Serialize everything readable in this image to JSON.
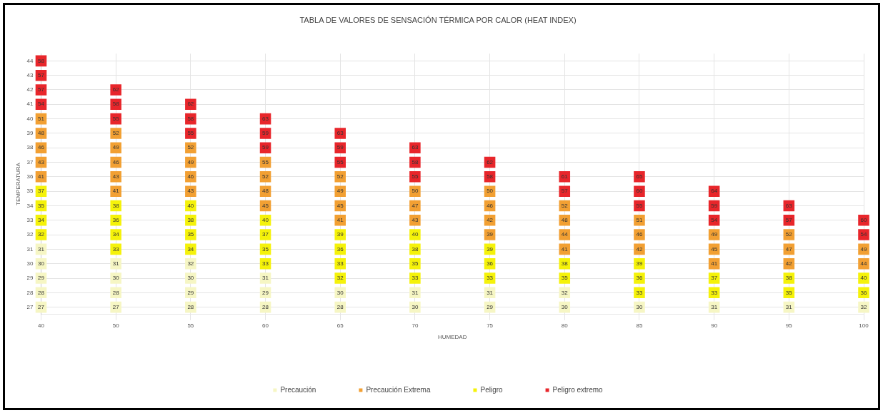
{
  "chart_data": {
    "type": "scatter",
    "title": "TABLA DE VALORES DE SENSACIÓN TÉRMICA POR CALOR (HEAT INDEX)",
    "xlabel": "HUMEDAD",
    "ylabel": "TEMPERATURA",
    "categories": [
      "40",
      "50",
      "55",
      "60",
      "65",
      "70",
      "75",
      "80",
      "85",
      "90",
      "95",
      "100"
    ],
    "series": [
      {
        "name": "Precaución",
        "color": "#f6f6c4",
        "x": [
          "40",
          "40",
          "40",
          "40",
          "40",
          "50",
          "50",
          "50",
          "50",
          "55",
          "55",
          "55",
          "55",
          "60",
          "60",
          "60",
          "65",
          "65",
          "70",
          "70",
          "75",
          "75",
          "80",
          "80",
          "85",
          "90",
          "95",
          "100"
        ],
        "values": [
          27,
          28,
          29,
          30,
          31,
          27,
          28,
          29,
          30,
          27,
          28,
          29,
          30,
          27,
          28,
          29,
          27,
          28,
          27,
          28,
          27,
          28,
          27,
          28,
          27,
          27,
          27,
          27
        ]
      },
      {
        "name": "Precaución Extrema",
        "color": "#f2a033",
        "x": [
          "40",
          "40",
          "40",
          "40",
          "40",
          "50",
          "50",
          "50",
          "50",
          "50",
          "55",
          "55",
          "55",
          "55",
          "60",
          "60",
          "60",
          "60",
          "65",
          "65",
          "65",
          "65",
          "70",
          "70",
          "70",
          "75",
          "75",
          "75",
          "75",
          "80",
          "80",
          "80",
          "80",
          "85",
          "85",
          "85",
          "90",
          "90",
          "90",
          "95",
          "95",
          "95",
          "100",
          "100"
        ],
        "values": [
          36,
          37,
          38,
          39,
          40,
          35,
          36,
          37,
          38,
          39,
          35,
          36,
          37,
          38,
          34,
          35,
          36,
          37,
          33,
          34,
          35,
          36,
          33,
          34,
          35,
          32,
          33,
          34,
          35,
          31,
          32,
          33,
          34,
          31,
          32,
          33,
          30,
          31,
          32,
          30,
          31,
          32,
          30,
          31
        ]
      },
      {
        "name": "Peligro",
        "color": "#f5f20a",
        "x": [
          "40",
          "40",
          "40",
          "40",
          "50",
          "50",
          "50",
          "50",
          "55",
          "55",
          "55",
          "55",
          "60",
          "60",
          "60",
          "60",
          "65",
          "65",
          "65",
          "65",
          "70",
          "70",
          "70",
          "70",
          "75",
          "75",
          "75",
          "80",
          "80",
          "85",
          "85",
          "85",
          "90",
          "90",
          "95",
          "95",
          "100",
          "100"
        ],
        "values": [
          32,
          33,
          34,
          35,
          31,
          32,
          33,
          34,
          31,
          32,
          33,
          34,
          30,
          31,
          32,
          33,
          29,
          30,
          31,
          32,
          29,
          30,
          31,
          32,
          29,
          30,
          31,
          29,
          30,
          28,
          29,
          30,
          28,
          29,
          28,
          29,
          28,
          29
        ]
      },
      {
        "name": "Peligro extremo",
        "color": "#e8262b",
        "x": [
          "40",
          "40",
          "40",
          "40",
          "50",
          "50",
          "50",
          "55",
          "55",
          "55",
          "60",
          "60",
          "60",
          "65",
          "65",
          "65",
          "70",
          "70",
          "70",
          "75",
          "75",
          "80",
          "80",
          "85",
          "85",
          "85",
          "90",
          "90",
          "90",
          "95",
          "95",
          "100",
          "100"
        ],
        "values": [
          41,
          42,
          43,
          44,
          40,
          41,
          42,
          39,
          40,
          41,
          38,
          39,
          40,
          37,
          38,
          39,
          36,
          37,
          38,
          36,
          37,
          35,
          36,
          34,
          35,
          36,
          33,
          34,
          35,
          33,
          34,
          32,
          33
        ]
      }
    ],
    "annotations": [
      {
        "text": "27",
        "x": "40",
        "y": 27
      },
      {
        "text": "28",
        "x": "40",
        "y": 28
      },
      {
        "text": "29",
        "x": "40",
        "y": 29
      },
      {
        "text": "30",
        "x": "40",
        "y": 30
      },
      {
        "text": "31",
        "x": "40",
        "y": 31
      },
      {
        "text": "32",
        "x": "40",
        "y": 32
      },
      {
        "text": "34",
        "x": "40",
        "y": 33
      },
      {
        "text": "35",
        "x": "40",
        "y": 34
      },
      {
        "text": "37",
        "x": "40",
        "y": 35
      },
      {
        "text": "41",
        "x": "40",
        "y": 36
      },
      {
        "text": "43",
        "x": "40",
        "y": 37
      },
      {
        "text": "46",
        "x": "40",
        "y": 38
      },
      {
        "text": "48",
        "x": "40",
        "y": 39
      },
      {
        "text": "51",
        "x": "40",
        "y": 40
      },
      {
        "text": "54",
        "x": "40",
        "y": 41
      },
      {
        "text": "57",
        "x": "40",
        "y": 42
      },
      {
        "text": "57",
        "x": "40",
        "y": 43
      },
      {
        "text": "58",
        "x": "40",
        "y": 44
      },
      {
        "text": "27",
        "x": "50",
        "y": 27
      },
      {
        "text": "28",
        "x": "50",
        "y": 28
      },
      {
        "text": "30",
        "x": "50",
        "y": 29
      },
      {
        "text": "31",
        "x": "50",
        "y": 30
      },
      {
        "text": "33",
        "x": "50",
        "y": 31
      },
      {
        "text": "34",
        "x": "50",
        "y": 32
      },
      {
        "text": "36",
        "x": "50",
        "y": 33
      },
      {
        "text": "38",
        "x": "50",
        "y": 34
      },
      {
        "text": "41",
        "x": "50",
        "y": 35
      },
      {
        "text": "43",
        "x": "50",
        "y": 36
      },
      {
        "text": "46",
        "x": "50",
        "y": 37
      },
      {
        "text": "49",
        "x": "50",
        "y": 38
      },
      {
        "text": "52",
        "x": "50",
        "y": 39
      },
      {
        "text": "55",
        "x": "50",
        "y": 40
      },
      {
        "text": "58",
        "x": "50",
        "y": 41
      },
      {
        "text": "62",
        "x": "50",
        "y": 42
      },
      {
        "text": "28",
        "x": "55",
        "y": 27
      },
      {
        "text": "29",
        "x": "55",
        "y": 28
      },
      {
        "text": "30",
        "x": "55",
        "y": 29
      },
      {
        "text": "32",
        "x": "55",
        "y": 30
      },
      {
        "text": "34",
        "x": "55",
        "y": 31
      },
      {
        "text": "35",
        "x": "55",
        "y": 32
      },
      {
        "text": "38",
        "x": "55",
        "y": 33
      },
      {
        "text": "40",
        "x": "55",
        "y": 34
      },
      {
        "text": "43",
        "x": "55",
        "y": 35
      },
      {
        "text": "46",
        "x": "55",
        "y": 36
      },
      {
        "text": "49",
        "x": "55",
        "y": 37
      },
      {
        "text": "52",
        "x": "55",
        "y": 38
      },
      {
        "text": "55",
        "x": "55",
        "y": 39
      },
      {
        "text": "58",
        "x": "55",
        "y": 40
      },
      {
        "text": "62",
        "x": "55",
        "y": 41
      },
      {
        "text": "28",
        "x": "60",
        "y": 27
      },
      {
        "text": "29",
        "x": "60",
        "y": 28
      },
      {
        "text": "31",
        "x": "60",
        "y": 29
      },
      {
        "text": "33",
        "x": "60",
        "y": 30
      },
      {
        "text": "35",
        "x": "60",
        "y": 31
      },
      {
        "text": "37",
        "x": "60",
        "y": 32
      },
      {
        "text": "40",
        "x": "60",
        "y": 33
      },
      {
        "text": "45",
        "x": "60",
        "y": 34
      },
      {
        "text": "48",
        "x": "60",
        "y": 35
      },
      {
        "text": "52",
        "x": "60",
        "y": 36
      },
      {
        "text": "55",
        "x": "60",
        "y": 37
      },
      {
        "text": "59",
        "x": "60",
        "y": 38
      },
      {
        "text": "59",
        "x": "60",
        "y": 39
      },
      {
        "text": "63",
        "x": "60",
        "y": 40
      },
      {
        "text": "28",
        "x": "65",
        "y": 27
      },
      {
        "text": "30",
        "x": "65",
        "y": 28
      },
      {
        "text": "32",
        "x": "65",
        "y": 29
      },
      {
        "text": "33",
        "x": "65",
        "y": 30
      },
      {
        "text": "36",
        "x": "65",
        "y": 31
      },
      {
        "text": "39",
        "x": "65",
        "y": 32
      },
      {
        "text": "41",
        "x": "65",
        "y": 33
      },
      {
        "text": "45",
        "x": "65",
        "y": 34
      },
      {
        "text": "49",
        "x": "65",
        "y": 35
      },
      {
        "text": "52",
        "x": "65",
        "y": 36
      },
      {
        "text": "55",
        "x": "65",
        "y": 37
      },
      {
        "text": "59",
        "x": "65",
        "y": 38
      },
      {
        "text": "63",
        "x": "65",
        "y": 39
      },
      {
        "text": "30",
        "x": "70",
        "y": 27
      },
      {
        "text": "31",
        "x": "70",
        "y": 28
      },
      {
        "text": "33",
        "x": "70",
        "y": 29
      },
      {
        "text": "35",
        "x": "70",
        "y": 30
      },
      {
        "text": "38",
        "x": "70",
        "y": 31
      },
      {
        "text": "40",
        "x": "70",
        "y": 32
      },
      {
        "text": "43",
        "x": "70",
        "y": 33
      },
      {
        "text": "47",
        "x": "70",
        "y": 34
      },
      {
        "text": "50",
        "x": "70",
        "y": 35
      },
      {
        "text": "55",
        "x": "70",
        "y": 36
      },
      {
        "text": "58",
        "x": "70",
        "y": 37
      },
      {
        "text": "63",
        "x": "70",
        "y": 38
      },
      {
        "text": "29",
        "x": "75",
        "y": 27
      },
      {
        "text": "31",
        "x": "75",
        "y": 28
      },
      {
        "text": "33",
        "x": "75",
        "y": 29
      },
      {
        "text": "36",
        "x": "75",
        "y": 30
      },
      {
        "text": "39",
        "x": "75",
        "y": 31
      },
      {
        "text": "39",
        "x": "75",
        "y": 32
      },
      {
        "text": "42",
        "x": "75",
        "y": 33
      },
      {
        "text": "46",
        "x": "75",
        "y": 34
      },
      {
        "text": "50",
        "x": "75",
        "y": 35
      },
      {
        "text": "58",
        "x": "75",
        "y": 36
      },
      {
        "text": "62",
        "x": "75",
        "y": 37
      },
      {
        "text": "30",
        "x": "80",
        "y": 27
      },
      {
        "text": "32",
        "x": "80",
        "y": 28
      },
      {
        "text": "35",
        "x": "80",
        "y": 29
      },
      {
        "text": "38",
        "x": "80",
        "y": 30
      },
      {
        "text": "41",
        "x": "80",
        "y": 31
      },
      {
        "text": "44",
        "x": "80",
        "y": 32
      },
      {
        "text": "48",
        "x": "80",
        "y": 33
      },
      {
        "text": "52",
        "x": "80",
        "y": 34
      },
      {
        "text": "57",
        "x": "80",
        "y": 35
      },
      {
        "text": "61",
        "x": "80",
        "y": 36
      },
      {
        "text": "30",
        "x": "85",
        "y": 27
      },
      {
        "text": "33",
        "x": "85",
        "y": 28
      },
      {
        "text": "36",
        "x": "85",
        "y": 29
      },
      {
        "text": "39",
        "x": "85",
        "y": 30
      },
      {
        "text": "42",
        "x": "85",
        "y": 31
      },
      {
        "text": "46",
        "x": "85",
        "y": 32
      },
      {
        "text": "51",
        "x": "85",
        "y": 33
      },
      {
        "text": "55",
        "x": "85",
        "y": 34
      },
      {
        "text": "60",
        "x": "85",
        "y": 35
      },
      {
        "text": "65",
        "x": "85",
        "y": 36
      },
      {
        "text": "31",
        "x": "90",
        "y": 27
      },
      {
        "text": "33",
        "x": "90",
        "y": 28
      },
      {
        "text": "37",
        "x": "90",
        "y": 29
      },
      {
        "text": "41",
        "x": "90",
        "y": 30
      },
      {
        "text": "45",
        "x": "90",
        "y": 31
      },
      {
        "text": "49",
        "x": "90",
        "y": 32
      },
      {
        "text": "54",
        "x": "90",
        "y": 33
      },
      {
        "text": "59",
        "x": "90",
        "y": 34
      },
      {
        "text": "64",
        "x": "90",
        "y": 35
      },
      {
        "text": "31",
        "x": "95",
        "y": 27
      },
      {
        "text": "35",
        "x": "95",
        "y": 28
      },
      {
        "text": "38",
        "x": "95",
        "y": 29
      },
      {
        "text": "42",
        "x": "95",
        "y": 30
      },
      {
        "text": "47",
        "x": "95",
        "y": 31
      },
      {
        "text": "52",
        "x": "95",
        "y": 32
      },
      {
        "text": "57",
        "x": "95",
        "y": 33
      },
      {
        "text": "63",
        "x": "95",
        "y": 34
      },
      {
        "text": "32",
        "x": "100",
        "y": 27
      },
      {
        "text": "36",
        "x": "100",
        "y": 28
      },
      {
        "text": "40",
        "x": "100",
        "y": 29
      },
      {
        "text": "44",
        "x": "100",
        "y": 30
      },
      {
        "text": "49",
        "x": "100",
        "y": 31
      },
      {
        "text": "54",
        "x": "100",
        "y": 32
      },
      {
        "text": "60",
        "x": "100",
        "y": 33
      }
    ],
    "ylim": [
      26.5,
      44.5
    ],
    "yticks": [
      27,
      28,
      29,
      30,
      31,
      32,
      33,
      34,
      35,
      36,
      37,
      38,
      39,
      40,
      41,
      42,
      43,
      44
    ],
    "grid": true,
    "legend": "bottom",
    "marker": "square"
  }
}
